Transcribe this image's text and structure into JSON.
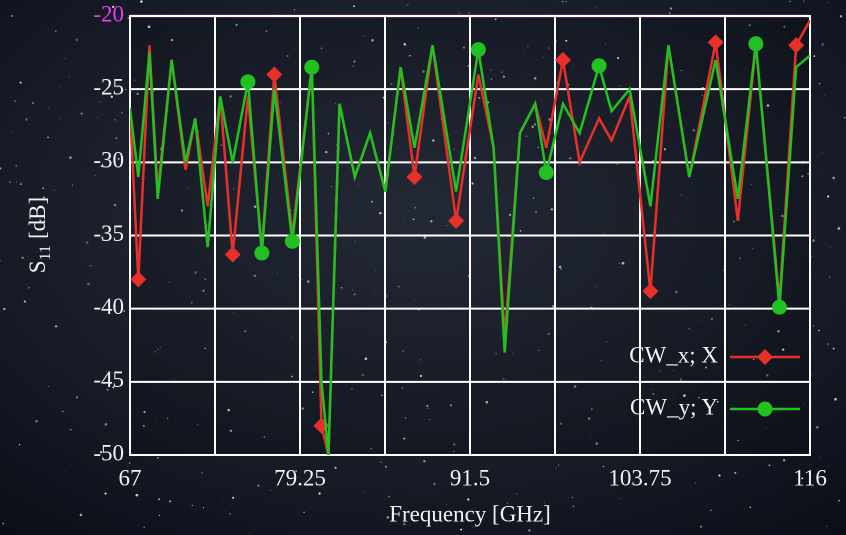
{
  "chart_data": {
    "type": "line",
    "xlabel": "Frequency [GHz]",
    "ylabel": {
      "base": "S",
      "sub": "11",
      "unit": "[dB]"
    },
    "x": [
      67,
      67.6,
      68.4,
      69,
      70,
      71,
      71.7,
      72.6,
      73.5,
      74.4,
      75.5,
      76.5,
      77.4,
      78.7,
      80.1,
      80.8,
      81.3,
      82.1,
      83.2,
      84.3,
      85.4,
      86.5,
      87.5,
      88.8,
      90.5,
      92.1,
      93.2,
      94,
      95.1,
      96.2,
      97,
      98.2,
      99.4,
      100.8,
      101.7,
      103,
      104.5,
      105.8,
      107.3,
      109.2,
      110.8,
      112.1,
      113.8,
      115,
      116
    ],
    "series": [
      {
        "name": "CW_x; X",
        "color": "#e8302a",
        "marker": "diamond",
        "values": [
          -26.3,
          -38,
          -22,
          -32,
          -23,
          -30.5,
          -27,
          -33,
          -25.5,
          -36.3,
          -25.5,
          -36,
          -24,
          -35,
          -23.5,
          -48,
          -50,
          -26,
          -31,
          -28,
          -32,
          -23.5,
          -31,
          -22,
          -34,
          -24,
          -29,
          -42,
          -28,
          -26,
          -29,
          -23,
          -30,
          -27,
          -28.5,
          -25.5,
          -38.8,
          -22,
          -31,
          -21.8,
          -34,
          -22,
          -39.5,
          -22,
          -20.3
        ],
        "marker_x": [
          67.6,
          74.4,
          77.4,
          80.8,
          87.5,
          90.5,
          98.2,
          104.5,
          109.2,
          115
        ]
      },
      {
        "name": "CW_y; Y",
        "color": "#22c020",
        "marker": "circle",
        "values": [
          -26.3,
          -31,
          -22.5,
          -32.5,
          -23,
          -30,
          -27,
          -35.8,
          -25.5,
          -30,
          -24.5,
          -36.2,
          -25,
          -35.4,
          -23.5,
          -45,
          -50,
          -26,
          -31,
          -28,
          -32,
          -23.5,
          -29,
          -22,
          -32,
          -22.3,
          -29,
          -43,
          -28,
          -26,
          -30.7,
          -26,
          -28,
          -23.4,
          -26.5,
          -25,
          -33,
          -22,
          -31,
          -23,
          -32.5,
          -21.9,
          -39.9,
          -23.5,
          -22.7
        ],
        "marker_x": [
          75.5,
          76.5,
          78.7,
          80.1,
          92.1,
          97,
          100.8,
          112.1,
          113.8
        ]
      }
    ],
    "xlim": [
      67,
      116
    ],
    "xticks": [
      67,
      79.25,
      91.5,
      103.75,
      116
    ],
    "xminor": [
      73.125,
      85.375,
      97.625,
      109.875
    ],
    "ylim": [
      -50,
      -20
    ],
    "yticks": [
      -50,
      -45,
      -40,
      -35,
      -30,
      -25,
      -20
    ],
    "threshold": {
      "value": -20,
      "color": "#e040e8"
    },
    "grid": true,
    "legend": "lower right"
  }
}
